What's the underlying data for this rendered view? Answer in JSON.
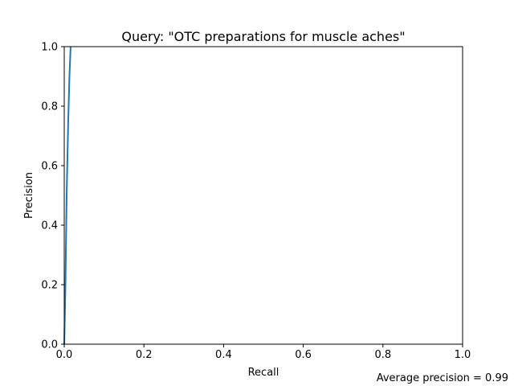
{
  "chart_data": {
    "type": "line",
    "title": "Query: \"OTC preparations for muscle aches\"",
    "xlabel": "Recall",
    "ylabel": "Precision",
    "xlim": [
      0,
      1
    ],
    "ylim": [
      0,
      1
    ],
    "xticks": [
      "0.0",
      "0.2",
      "0.4",
      "0.6",
      "0.8",
      "1.0"
    ],
    "yticks": [
      "0.0",
      "0.2",
      "0.4",
      "0.6",
      "0.8",
      "1.0"
    ],
    "grid": false,
    "series": [
      {
        "color": "#1f77b4",
        "x": [
          0.0,
          0.003,
          0.006,
          0.01,
          0.013,
          0.016
        ],
        "y": [
          0.0,
          0.2,
          0.5,
          0.75,
          0.9,
          1.0
        ]
      }
    ],
    "annotation": "Average precision = 0.99"
  }
}
